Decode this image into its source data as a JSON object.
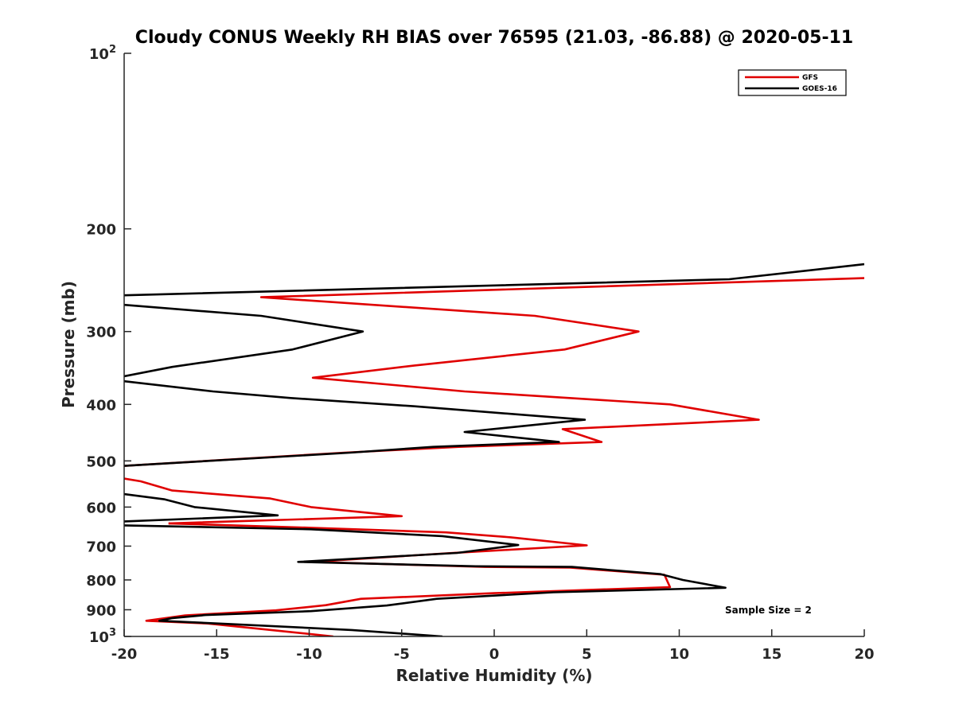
{
  "chart_data": {
    "type": "line",
    "title": "Cloudy CONUS Weekly RH BIAS over 76595 (21.03, -86.88) @ 2020-05-11",
    "xlabel": "Relative Humidity (%)",
    "ylabel": "Pressure (mb)",
    "xlim": [
      -20,
      20
    ],
    "ylim": [
      100,
      1000
    ],
    "yscale": "log",
    "y_reversed": true,
    "x_ticks": [
      "-20",
      "-15",
      "-10",
      "-5",
      "0",
      "5",
      "10",
      "15",
      "20"
    ],
    "x_tick_values": [
      -20,
      -15,
      -10,
      -5,
      0,
      5,
      10,
      15,
      20
    ],
    "y_ticks": [
      {
        "value": 100,
        "base": "10",
        "exp": "2"
      },
      {
        "value": 200,
        "label": "200"
      },
      {
        "value": 300,
        "label": "300"
      },
      {
        "value": 400,
        "label": "400"
      },
      {
        "value": 500,
        "label": "500"
      },
      {
        "value": 600,
        "label": "600"
      },
      {
        "value": 700,
        "label": "700"
      },
      {
        "value": 800,
        "label": "800"
      },
      {
        "value": 900,
        "label": "900"
      },
      {
        "value": 1000,
        "base": "10",
        "exp": "3"
      }
    ],
    "legend": {
      "position": "top-right",
      "entries": [
        "GFS",
        "GOES-16"
      ]
    },
    "annotation": "Sample Size = 2",
    "series": [
      {
        "name": "GFS",
        "color": "#e00000",
        "segments": [
          [
            [
              20,
              243
            ],
            [
              -12.6,
              262
            ],
            [
              2.2,
              282
            ],
            [
              7.8,
              300
            ],
            [
              3.8,
              322
            ],
            [
              -4.3,
              343
            ],
            [
              -9.8,
              360
            ],
            [
              -1.6,
              380
            ],
            [
              9.5,
              400
            ],
            [
              14.3,
              425
            ],
            [
              3.7,
              441
            ],
            [
              5.8,
              464
            ],
            [
              -1.9,
              473
            ],
            [
              -8.1,
              484
            ],
            [
              -20,
              510
            ]
          ],
          [
            [
              -20,
              536
            ],
            [
              -19.1,
              542
            ],
            [
              -17.4,
              562
            ],
            [
              -12.1,
              580
            ],
            [
              -9.9,
              600
            ],
            [
              -5,
              622
            ],
            [
              -17.6,
              640
            ]
          ],
          [
            [
              -17.6,
              640
            ],
            [
              -9.9,
              651
            ],
            [
              -2.6,
              663
            ],
            [
              0.9,
              676
            ],
            [
              5,
              698
            ],
            [
              -2.5,
              720
            ],
            [
              -9.9,
              745
            ],
            [
              -0.5,
              760
            ],
            [
              4.1,
              762
            ],
            [
              9.2,
              784
            ],
            [
              9.5,
              823
            ],
            [
              0,
              843
            ],
            [
              -7.2,
              862
            ],
            [
              -9.1,
              884
            ],
            [
              -11.8,
              902
            ],
            [
              -16.7,
              920
            ],
            [
              -18.8,
              940
            ],
            [
              -15.5,
              950
            ],
            [
              -8.7,
              1000
            ]
          ]
        ]
      },
      {
        "name": "GOES-16",
        "color": "#000000",
        "segments": [
          [
            [
              20,
              230
            ],
            [
              12.7,
              244
            ],
            [
              -20,
              260
            ]
          ],
          [
            [
              -20,
              270
            ],
            [
              -12.6,
              282
            ],
            [
              -7.1,
              300
            ],
            [
              -10.9,
              322
            ],
            [
              -17.4,
              345
            ],
            [
              -20,
              358
            ]
          ],
          [
            [
              -20,
              365
            ],
            [
              -15.2,
              380
            ],
            [
              -11,
              390
            ],
            [
              -4.3,
              403
            ],
            [
              4.9,
              425
            ],
            [
              -1.6,
              446
            ],
            [
              3.5,
              464
            ],
            [
              -3.3,
              473
            ],
            [
              -7.8,
              484
            ],
            [
              -20,
              510
            ]
          ],
          [
            [
              -20,
              570
            ],
            [
              -17.8,
              582
            ],
            [
              -16.2,
              600
            ],
            [
              -11.7,
              620
            ],
            [
              -20,
              635
            ]
          ],
          [
            [
              -20,
              645
            ],
            [
              -9.9,
              655
            ],
            [
              -2.8,
              673
            ],
            [
              1.3,
              697
            ],
            [
              -2,
              719
            ],
            [
              -10.6,
              745
            ],
            [
              -1,
              758
            ],
            [
              4.2,
              760
            ],
            [
              9,
              782
            ],
            [
              10.2,
              800
            ],
            [
              12.5,
              825
            ],
            [
              3.2,
              840
            ],
            [
              -3.1,
              862
            ],
            [
              -5.8,
              885
            ],
            [
              -9.9,
              905
            ],
            [
              -15.6,
              919
            ],
            [
              -17.4,
              930
            ],
            [
              -18.1,
              940
            ],
            [
              -14.4,
              952
            ],
            [
              -7.7,
              975
            ],
            [
              -2.8,
              1000
            ]
          ]
        ]
      }
    ]
  }
}
